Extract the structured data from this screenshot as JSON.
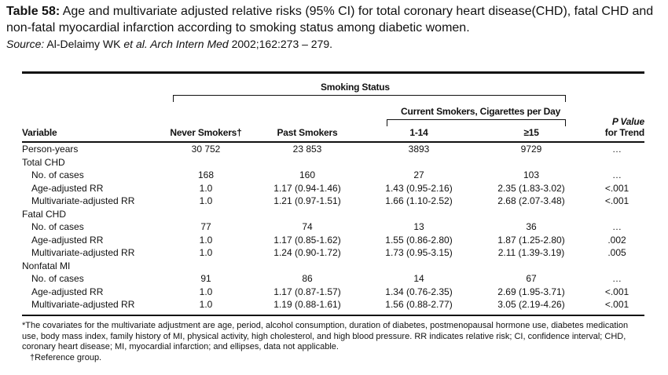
{
  "caption": {
    "label": "Table 58:",
    "text": " Age and multivariate adjusted relative risks (95% CI) for total coronary heart disease(CHD), fatal CHD and non-fatal myocardial infarction according to smoking status among diabetic women.",
    "source_label": "Source:",
    "source_authors": " Al-Delaimy WK ",
    "source_etal": "et al. Arch Intern Med",
    "source_rest": " 2002;162:273 – 279."
  },
  "header": {
    "smoking_status": "Smoking Status",
    "current_smokers": "Current Smokers, Cigarettes per Day",
    "variable": "Variable",
    "never": "Never Smokers†",
    "past": "Past Smokers",
    "c1_14": "1-14",
    "c15": "≥15",
    "pvalue_1": "P Value",
    "pvalue_2": "for Trend"
  },
  "rows": [
    {
      "label": "Person-years",
      "indent": false,
      "v": [
        "30 752",
        "23 853",
        "3893",
        "9729",
        "…"
      ]
    },
    {
      "label": "Total CHD",
      "indent": false,
      "v": [
        "",
        "",
        "",
        "",
        ""
      ]
    },
    {
      "label": "No. of cases",
      "indent": true,
      "v": [
        "168",
        "160",
        "27",
        "103",
        "…"
      ]
    },
    {
      "label": "Age-adjusted RR",
      "indent": true,
      "v": [
        "1.0",
        "1.17 (0.94-1.46)",
        "1.43 (0.95-2.16)",
        "2.35 (1.83-3.02)",
        "<.001"
      ]
    },
    {
      "label": "Multivariate-adjusted RR",
      "indent": true,
      "v": [
        "1.0",
        "1.21 (0.97-1.51)",
        "1.66 (1.10-2.52)",
        "2.68 (2.07-3.48)",
        "<.001"
      ]
    },
    {
      "label": "Fatal CHD",
      "indent": false,
      "v": [
        "",
        "",
        "",
        "",
        ""
      ]
    },
    {
      "label": "No. of cases",
      "indent": true,
      "v": [
        "77",
        "74",
        "13",
        "36",
        "…"
      ]
    },
    {
      "label": "Age-adjusted RR",
      "indent": true,
      "v": [
        "1.0",
        "1.17 (0.85-1.62)",
        "1.55 (0.86-2.80)",
        "1.87 (1.25-2.80)",
        ".002"
      ]
    },
    {
      "label": "Multivariate-adjusted RR",
      "indent": true,
      "v": [
        "1.0",
        "1.24 (0.90-1.72)",
        "1.73 (0.95-3.15)",
        "2.11 (1.39-3.19)",
        ".005"
      ]
    },
    {
      "label": "Nonfatal MI",
      "indent": false,
      "v": [
        "",
        "",
        "",
        "",
        ""
      ]
    },
    {
      "label": "No. of cases",
      "indent": true,
      "v": [
        "91",
        "86",
        "14",
        "67",
        "…"
      ]
    },
    {
      "label": "Age-adjusted RR",
      "indent": true,
      "v": [
        "1.0",
        "1.17 (0.87-1.57)",
        "1.34 (0.76-2.35)",
        "2.69 (1.95-3.71)",
        "<.001"
      ]
    },
    {
      "label": "Multivariate-adjusted RR",
      "indent": true,
      "v": [
        "1.0",
        "1.19 (0.88-1.61)",
        "1.56 (0.88-2.77)",
        "3.05 (2.19-4.26)",
        "<.001"
      ]
    }
  ],
  "footnote": {
    "line1": "*The covariates for the multivariate adjustment are age, period, alcohol consumption, duration of diabetes, postmenopausal hormone use, diabetes medication use, body mass index, family history of MI, physical activity, high cholesterol, and high blood pressure. RR indicates relative risk; CI, confidence interval; CHD, coronary heart disease; MI, myocardial infarction; and ellipses, data not applicable.",
    "line2": "†Reference group."
  }
}
